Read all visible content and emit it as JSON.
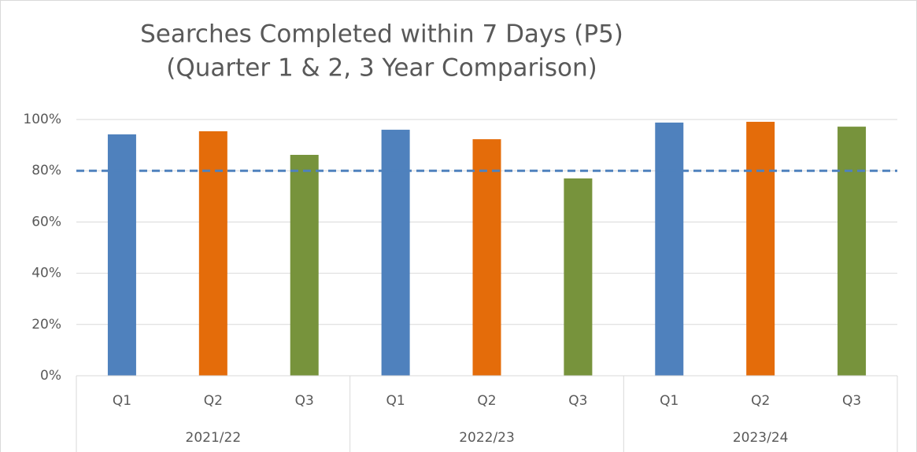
{
  "chart_data": {
    "type": "bar",
    "title": [
      "Searches Completed within 7 Days (P5)",
      "(Quarter 1 & 2, 3 Year Comparison)"
    ],
    "groups": [
      {
        "name": "2021/22",
        "categories": [
          "Q1",
          "Q2",
          "Q3"
        ],
        "values": [
          94.2,
          95.4,
          86.2
        ]
      },
      {
        "name": "2022/23",
        "categories": [
          "Q1",
          "Q2",
          "Q3"
        ],
        "values": [
          96,
          92.3,
          77
        ]
      },
      {
        "name": "2023/24",
        "categories": [
          "Q1",
          "Q2",
          "Q3"
        ],
        "values": [
          98.8,
          99.1,
          97.2
        ]
      }
    ],
    "colors": [
      "#4f81bd",
      "#e46c0a",
      "#77933c"
    ],
    "target": 80,
    "target_color": "#4f81bd",
    "ylim": [
      0,
      100
    ],
    "yticks": [
      {
        "value": 0,
        "label": "0%"
      },
      {
        "value": 20,
        "label": "20%"
      },
      {
        "value": 40,
        "label": "40%"
      },
      {
        "value": 60,
        "label": "60%"
      },
      {
        "value": 80,
        "label": "80%"
      },
      {
        "value": 100,
        "label": "100%"
      }
    ],
    "grid": true
  }
}
